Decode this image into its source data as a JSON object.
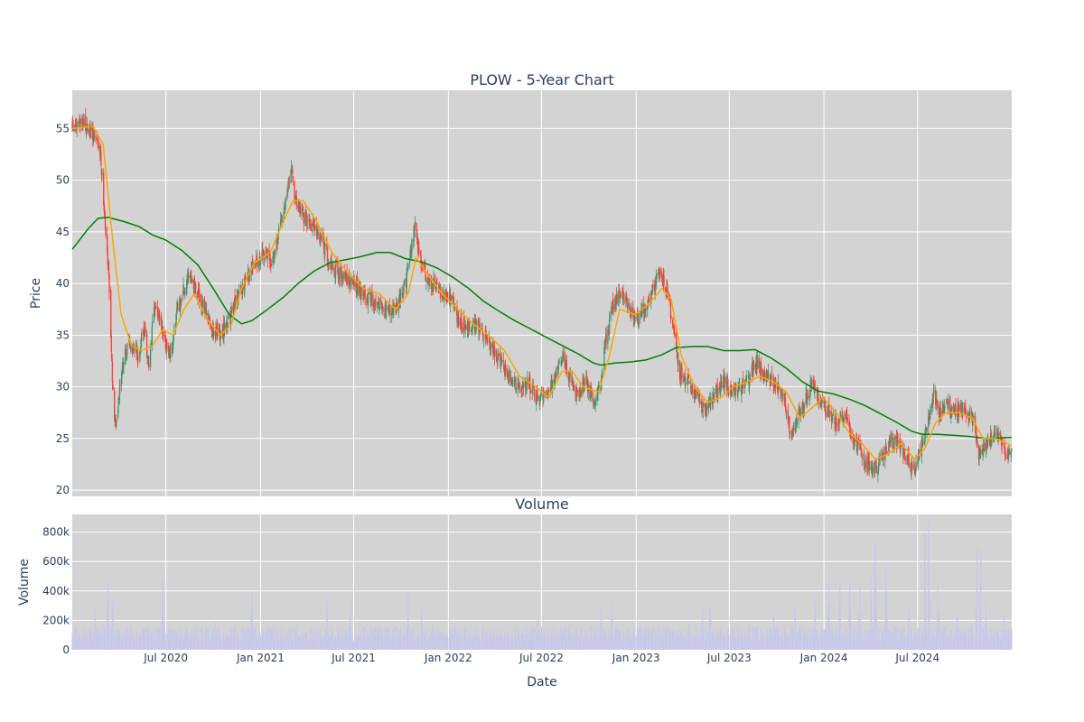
{
  "chart_data": [
    {
      "type": "candlestick",
      "title": "PLOW - 5-Year Chart",
      "ylabel": "Price",
      "ylim": [
        19.4,
        58.7
      ],
      "yticks": [
        20,
        25,
        30,
        35,
        40,
        45,
        50,
        55
      ],
      "xlim": [
        "2020-01-01",
        "2024-12-31"
      ],
      "xticks": [
        {
          "date": "2020-07-01",
          "label": "Jul 2020"
        },
        {
          "date": "2021-01-01",
          "label": "Jan 2021"
        },
        {
          "date": "2021-07-01",
          "label": "Jul 2021"
        },
        {
          "date": "2022-01-01",
          "label": "Jan 2022"
        },
        {
          "date": "2022-07-01",
          "label": "Jul 2022"
        },
        {
          "date": "2023-01-01",
          "label": "Jan 2023"
        },
        {
          "date": "2023-07-01",
          "label": "Jul 2023"
        },
        {
          "date": "2024-01-01",
          "label": "Jan 2024"
        },
        {
          "date": "2024-07-01",
          "label": "Jul 2024"
        }
      ],
      "grid": true,
      "background": "#d3d3d3",
      "colors": {
        "up": "#3d9970",
        "down": "#ff4136",
        "ma_short": "#ffa500",
        "ma_long": "#008000"
      },
      "close_trend": [
        [
          "2020-01-01",
          55.0
        ],
        [
          "2020-01-20",
          55.5
        ],
        [
          "2020-02-10",
          54.5
        ],
        [
          "2020-02-25",
          52.5
        ],
        [
          "2020-03-05",
          46.0
        ],
        [
          "2020-03-12",
          41.0
        ],
        [
          "2020-03-20",
          29.0
        ],
        [
          "2020-03-25",
          26.0
        ],
        [
          "2020-04-05",
          31.5
        ],
        [
          "2020-04-20",
          34.5
        ],
        [
          "2020-05-10",
          33.0
        ],
        [
          "2020-05-20",
          36.0
        ],
        [
          "2020-05-28",
          32.0
        ],
        [
          "2020-06-10",
          38.0
        ],
        [
          "2020-06-25",
          35.0
        ],
        [
          "2020-07-10",
          33.0
        ],
        [
          "2020-07-20",
          36.5
        ],
        [
          "2020-08-05",
          39.5
        ],
        [
          "2020-08-20",
          40.5
        ],
        [
          "2020-09-05",
          38.5
        ],
        [
          "2020-09-25",
          36.0
        ],
        [
          "2020-10-15",
          35.0
        ],
        [
          "2020-11-01",
          36.5
        ],
        [
          "2020-11-20",
          39.0
        ],
        [
          "2020-12-10",
          41.0
        ],
        [
          "2021-01-05",
          43.0
        ],
        [
          "2021-01-25",
          42.0
        ],
        [
          "2021-02-05",
          45.0
        ],
        [
          "2021-02-20",
          48.5
        ],
        [
          "2021-03-01",
          51.0
        ],
        [
          "2021-03-10",
          48.0
        ],
        [
          "2021-03-25",
          46.5
        ],
        [
          "2021-04-15",
          45.5
        ],
        [
          "2021-05-01",
          44.0
        ],
        [
          "2021-05-15",
          42.0
        ],
        [
          "2021-06-01",
          41.0
        ],
        [
          "2021-06-20",
          40.5
        ],
        [
          "2021-07-10",
          39.5
        ],
        [
          "2021-08-01",
          38.5
        ],
        [
          "2021-08-20",
          38.0
        ],
        [
          "2021-09-10",
          37.0
        ],
        [
          "2021-09-25",
          38.0
        ],
        [
          "2021-10-10",
          40.0
        ],
        [
          "2021-10-20",
          43.0
        ],
        [
          "2021-10-28",
          45.5
        ],
        [
          "2021-11-05",
          43.0
        ],
        [
          "2021-11-15",
          41.0
        ],
        [
          "2021-12-10",
          39.5
        ],
        [
          "2022-01-05",
          38.5
        ],
        [
          "2022-01-25",
          36.0
        ],
        [
          "2022-02-20",
          36.0
        ],
        [
          "2022-03-10",
          35.0
        ],
        [
          "2022-04-05",
          33.0
        ],
        [
          "2022-04-25",
          31.5
        ],
        [
          "2022-05-15",
          30.0
        ],
        [
          "2022-06-05",
          30.5
        ],
        [
          "2022-06-20",
          29.0
        ],
        [
          "2022-07-10",
          29.5
        ],
        [
          "2022-07-25",
          30.5
        ],
        [
          "2022-08-10",
          33.0
        ],
        [
          "2022-08-25",
          31.0
        ],
        [
          "2022-09-10",
          29.0
        ],
        [
          "2022-09-25",
          30.5
        ],
        [
          "2022-10-10",
          28.5
        ],
        [
          "2022-10-25",
          30.5
        ],
        [
          "2022-11-01",
          34.0
        ],
        [
          "2022-11-15",
          37.5
        ],
        [
          "2022-12-01",
          39.0
        ],
        [
          "2022-12-20",
          37.5
        ],
        [
          "2023-01-05",
          36.5
        ],
        [
          "2023-01-25",
          38.5
        ],
        [
          "2023-02-10",
          40.5
        ],
        [
          "2023-02-20",
          41.0
        ],
        [
          "2023-03-05",
          38.5
        ],
        [
          "2023-03-15",
          35.5
        ],
        [
          "2023-03-25",
          31.5
        ],
        [
          "2023-04-10",
          30.5
        ],
        [
          "2023-04-25",
          29.5
        ],
        [
          "2023-05-15",
          27.5
        ],
        [
          "2023-06-01",
          29.0
        ],
        [
          "2023-06-20",
          30.5
        ],
        [
          "2023-07-10",
          29.5
        ],
        [
          "2023-07-25",
          30.0
        ],
        [
          "2023-08-10",
          31.0
        ],
        [
          "2023-08-25",
          32.5
        ],
        [
          "2023-09-10",
          31.0
        ],
        [
          "2023-09-25",
          30.5
        ],
        [
          "2023-10-15",
          29.5
        ],
        [
          "2023-10-28",
          25.5
        ],
        [
          "2023-11-10",
          27.0
        ],
        [
          "2023-11-25",
          28.5
        ],
        [
          "2023-12-10",
          30.5
        ],
        [
          "2023-12-25",
          28.5
        ],
        [
          "2024-01-10",
          27.5
        ],
        [
          "2024-01-25",
          26.5
        ],
        [
          "2024-02-10",
          27.5
        ],
        [
          "2024-02-25",
          25.0
        ],
        [
          "2024-03-10",
          24.0
        ],
        [
          "2024-03-25",
          22.5
        ],
        [
          "2024-04-10",
          22.0
        ],
        [
          "2024-04-25",
          23.5
        ],
        [
          "2024-05-10",
          25.0
        ],
        [
          "2024-05-25",
          24.5
        ],
        [
          "2024-06-10",
          23.0
        ],
        [
          "2024-06-25",
          21.8
        ],
        [
          "2024-07-10",
          24.5
        ],
        [
          "2024-07-20",
          26.5
        ],
        [
          "2024-08-01",
          29.5
        ],
        [
          "2024-08-10",
          27.5
        ],
        [
          "2024-08-25",
          28.5
        ],
        [
          "2024-09-10",
          27.5
        ],
        [
          "2024-09-25",
          28.0
        ],
        [
          "2024-10-10",
          27.0
        ],
        [
          "2024-10-20",
          26.5
        ],
        [
          "2024-10-28",
          23.0
        ],
        [
          "2024-11-10",
          24.5
        ],
        [
          "2024-11-25",
          25.5
        ],
        [
          "2024-12-10",
          25.0
        ],
        [
          "2024-12-20",
          23.5
        ],
        [
          "2024-12-31",
          23.5
        ]
      ],
      "ma_short": [
        [
          "2020-01-01",
          55.0
        ],
        [
          "2020-02-10",
          55.2
        ],
        [
          "2020-03-01",
          53.5
        ],
        [
          "2020-03-20",
          44.0
        ],
        [
          "2020-04-05",
          37.0
        ],
        [
          "2020-04-25",
          34.0
        ],
        [
          "2020-05-15",
          33.5
        ],
        [
          "2020-06-05",
          34.0
        ],
        [
          "2020-06-25",
          35.5
        ],
        [
          "2020-07-15",
          35.0
        ],
        [
          "2020-08-05",
          37.5
        ],
        [
          "2020-08-25",
          39.0
        ],
        [
          "2020-09-20",
          36.5
        ],
        [
          "2020-10-15",
          35.0
        ],
        [
          "2020-11-05",
          36.0
        ],
        [
          "2020-11-25",
          39.5
        ],
        [
          "2020-12-20",
          42.0
        ],
        [
          "2021-01-20",
          43.0
        ],
        [
          "2021-02-10",
          45.5
        ],
        [
          "2021-03-05",
          48.0
        ],
        [
          "2021-03-25",
          48.0
        ],
        [
          "2021-04-20",
          46.0
        ],
        [
          "2021-05-20",
          43.0
        ],
        [
          "2021-06-20",
          41.0
        ],
        [
          "2021-07-20",
          39.5
        ],
        [
          "2021-08-20",
          39.0
        ],
        [
          "2021-09-20",
          37.5
        ],
        [
          "2021-10-15",
          39.0
        ],
        [
          "2021-10-30",
          42.5
        ],
        [
          "2021-11-20",
          41.0
        ],
        [
          "2021-12-20",
          39.0
        ],
        [
          "2022-01-20",
          37.5
        ],
        [
          "2022-02-20",
          36.0
        ],
        [
          "2022-03-20",
          35.0
        ],
        [
          "2022-04-20",
          33.5
        ],
        [
          "2022-05-20",
          31.0
        ],
        [
          "2022-06-20",
          30.0
        ],
        [
          "2022-07-15",
          29.0
        ],
        [
          "2022-08-10",
          31.5
        ],
        [
          "2022-08-30",
          31.5
        ],
        [
          "2022-09-20",
          30.0
        ],
        [
          "2022-10-20",
          29.5
        ],
        [
          "2022-11-10",
          33.0
        ],
        [
          "2022-11-30",
          37.5
        ],
        [
          "2022-12-30",
          37.0
        ],
        [
          "2023-01-25",
          38.0
        ],
        [
          "2023-02-20",
          39.5
        ],
        [
          "2023-03-10",
          38.5
        ],
        [
          "2023-03-30",
          33.0
        ],
        [
          "2023-04-25",
          30.0
        ],
        [
          "2023-05-20",
          28.5
        ],
        [
          "2023-06-15",
          29.0
        ],
        [
          "2023-07-10",
          30.0
        ],
        [
          "2023-08-05",
          30.5
        ],
        [
          "2023-08-30",
          31.0
        ],
        [
          "2023-09-25",
          30.5
        ],
        [
          "2023-10-20",
          29.5
        ],
        [
          "2023-11-15",
          27.0
        ],
        [
          "2023-12-10",
          28.0
        ],
        [
          "2023-12-30",
          29.0
        ],
        [
          "2024-01-25",
          27.5
        ],
        [
          "2024-02-20",
          25.5
        ],
        [
          "2024-03-15",
          24.5
        ],
        [
          "2024-04-10",
          23.0
        ],
        [
          "2024-05-05",
          23.5
        ],
        [
          "2024-05-30",
          24.5
        ],
        [
          "2024-06-25",
          23.0
        ],
        [
          "2024-07-15",
          24.0
        ],
        [
          "2024-08-05",
          26.5
        ],
        [
          "2024-08-25",
          27.5
        ],
        [
          "2024-09-20",
          27.5
        ],
        [
          "2024-10-15",
          27.0
        ],
        [
          "2024-11-05",
          25.0
        ],
        [
          "2024-11-30",
          25.0
        ],
        [
          "2024-12-31",
          24.3
        ]
      ],
      "ma_long": [
        [
          "2020-01-01",
          43.3
        ],
        [
          "2020-02-01",
          45.3
        ],
        [
          "2020-02-20",
          46.3
        ],
        [
          "2020-03-10",
          46.4
        ],
        [
          "2020-04-10",
          46.0
        ],
        [
          "2020-05-10",
          45.5
        ],
        [
          "2020-06-05",
          44.7
        ],
        [
          "2020-07-01",
          44.2
        ],
        [
          "2020-08-01",
          43.2
        ],
        [
          "2020-09-01",
          41.8
        ],
        [
          "2020-10-01",
          39.5
        ],
        [
          "2020-11-01",
          37.0
        ],
        [
          "2020-11-25",
          36.1
        ],
        [
          "2020-12-15",
          36.4
        ],
        [
          "2021-01-15",
          37.5
        ],
        [
          "2021-02-15",
          38.7
        ],
        [
          "2021-03-15",
          40.0
        ],
        [
          "2021-04-15",
          41.2
        ],
        [
          "2021-05-15",
          42.0
        ],
        [
          "2021-06-15",
          42.3
        ],
        [
          "2021-07-15",
          42.6
        ],
        [
          "2021-08-15",
          43.0
        ],
        [
          "2021-09-10",
          43.0
        ],
        [
          "2021-10-10",
          42.4
        ],
        [
          "2021-11-10",
          42.1
        ],
        [
          "2021-12-10",
          41.5
        ],
        [
          "2022-01-10",
          40.6
        ],
        [
          "2022-02-10",
          39.5
        ],
        [
          "2022-03-10",
          38.3
        ],
        [
          "2022-04-10",
          37.3
        ],
        [
          "2022-05-10",
          36.4
        ],
        [
          "2022-06-10",
          35.6
        ],
        [
          "2022-07-10",
          34.8
        ],
        [
          "2022-08-10",
          34.0
        ],
        [
          "2022-09-10",
          33.2
        ],
        [
          "2022-10-10",
          32.3
        ],
        [
          "2022-10-25",
          32.1
        ],
        [
          "2022-11-20",
          32.3
        ],
        [
          "2022-12-20",
          32.4
        ],
        [
          "2023-01-20",
          32.6
        ],
        [
          "2023-02-20",
          33.1
        ],
        [
          "2023-03-20",
          33.8
        ],
        [
          "2023-04-20",
          33.9
        ],
        [
          "2023-05-20",
          33.9
        ],
        [
          "2023-06-20",
          33.5
        ],
        [
          "2023-07-20",
          33.5
        ],
        [
          "2023-08-20",
          33.6
        ],
        [
          "2023-09-20",
          32.8
        ],
        [
          "2023-10-20",
          31.8
        ],
        [
          "2023-11-20",
          30.5
        ],
        [
          "2023-12-20",
          29.6
        ],
        [
          "2024-01-20",
          29.3
        ],
        [
          "2024-02-20",
          28.8
        ],
        [
          "2024-03-20",
          28.2
        ],
        [
          "2024-04-20",
          27.4
        ],
        [
          "2024-05-20",
          26.6
        ],
        [
          "2024-06-20",
          25.7
        ],
        [
          "2024-07-10",
          25.4
        ],
        [
          "2024-08-10",
          25.4
        ],
        [
          "2024-09-10",
          25.3
        ],
        [
          "2024-10-10",
          25.2
        ],
        [
          "2024-11-10",
          25.0
        ],
        [
          "2024-12-31",
          25.1
        ]
      ]
    },
    {
      "type": "bar",
      "title": "Volume",
      "xlabel": "Date",
      "ylabel": "Volume",
      "ylim": [
        0,
        920000
      ],
      "yticks": [
        {
          "value": 0,
          "label": "0"
        },
        {
          "value": 200000,
          "label": "200k"
        },
        {
          "value": 400000,
          "label": "400k"
        },
        {
          "value": 600000,
          "label": "600k"
        },
        {
          "value": 800000,
          "label": "800k"
        }
      ],
      "bar_color": "#c7c7ea",
      "volume_spikes": [
        [
          "2020-02-15",
          400000
        ],
        [
          "2020-03-01",
          260000
        ],
        [
          "2020-03-10",
          460000
        ],
        [
          "2020-03-20",
          350000
        ],
        [
          "2020-06-25",
          480000
        ],
        [
          "2020-10-05",
          190000
        ],
        [
          "2020-12-15",
          390000
        ],
        [
          "2021-05-10",
          330000
        ],
        [
          "2021-06-25",
          320000
        ],
        [
          "2021-10-15",
          390000
        ],
        [
          "2021-11-10",
          270000
        ],
        [
          "2022-06-25",
          290000
        ],
        [
          "2022-10-25",
          270000
        ],
        [
          "2022-11-15",
          300000
        ],
        [
          "2023-04-15",
          260000
        ],
        [
          "2023-05-10",
          280000
        ],
        [
          "2023-05-25",
          300000
        ],
        [
          "2023-09-25",
          240000
        ],
        [
          "2023-11-05",
          400000
        ],
        [
          "2023-12-15",
          330000
        ],
        [
          "2024-01-10",
          450000
        ],
        [
          "2024-02-01",
          450000
        ],
        [
          "2024-02-20",
          440000
        ],
        [
          "2024-03-10",
          620000
        ],
        [
          "2024-04-01",
          500000
        ],
        [
          "2024-04-10",
          730000
        ],
        [
          "2024-05-01",
          560000
        ],
        [
          "2024-06-15",
          400000
        ],
        [
          "2024-07-15",
          800000
        ],
        [
          "2024-07-22",
          880000
        ],
        [
          "2024-08-10",
          620000
        ],
        [
          "2024-09-15",
          350000
        ],
        [
          "2024-10-25",
          690000
        ],
        [
          "2024-11-01",
          660000
        ],
        [
          "2024-11-10",
          450000
        ],
        [
          "2024-12-15",
          340000
        ]
      ]
    }
  ]
}
